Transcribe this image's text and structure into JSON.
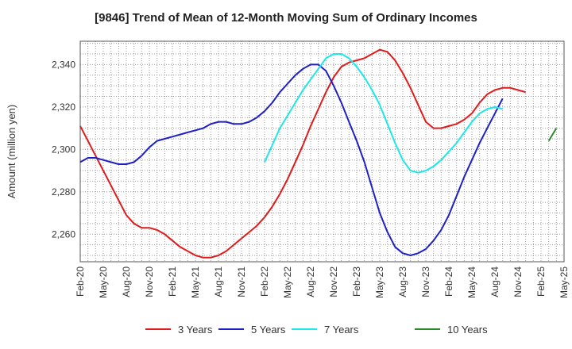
{
  "chart_data": {
    "type": "line",
    "title": "[9846]  Trend of Mean of 12-Month Moving Sum of Ordinary Incomes",
    "xlabel": "",
    "ylabel": "Amount (million yen)",
    "ylim": [
      2247,
      2351
    ],
    "yticks": [
      2260,
      2280,
      2300,
      2320,
      2340
    ],
    "ytick_labels": [
      "2,260",
      "2,280",
      "2,300",
      "2,320",
      "2,340"
    ],
    "x_start_month": "2020-02",
    "x_total_months": 63,
    "xtick_labels": [
      "Feb-20",
      "May-20",
      "Aug-20",
      "Nov-20",
      "Feb-21",
      "May-21",
      "Aug-21",
      "Nov-21",
      "Feb-22",
      "May-22",
      "Aug-22",
      "Nov-22",
      "Feb-23",
      "May-23",
      "Aug-23",
      "Nov-23",
      "Feb-24",
      "May-24",
      "Aug-24",
      "Nov-24",
      "Feb-25",
      "May-25"
    ],
    "grid": true,
    "legend_position": "bottom",
    "series": [
      {
        "name": "3 Years",
        "color": "#e01b1b",
        "start_index": 0,
        "values": [
          2311,
          2304,
          2297,
          2290,
          2283,
          2276,
          2269,
          2265,
          2263,
          2263,
          2262,
          2260,
          2257,
          2254,
          2252,
          2250,
          2249,
          2249,
          2250,
          2252,
          2255,
          2258,
          2261,
          2264,
          2268,
          2273,
          2279,
          2286,
          2294,
          2302,
          2311,
          2319,
          2327,
          2334,
          2339,
          2341,
          2342,
          2343,
          2345,
          2347,
          2346,
          2342,
          2336,
          2329,
          2321,
          2313,
          2310,
          2310,
          2311,
          2312,
          2314,
          2317,
          2322,
          2326,
          2328,
          2329,
          2329,
          2328,
          2327
        ]
      },
      {
        "name": "5 Years",
        "color": "#1f1fc7",
        "start_index": 0,
        "values": [
          2294,
          2296,
          2296,
          2295,
          2294,
          2293,
          2293,
          2294,
          2297,
          2301,
          2304,
          2305,
          2306,
          2307,
          2308,
          2309,
          2310,
          2312,
          2313,
          2313,
          2312,
          2312,
          2313,
          2315,
          2318,
          2322,
          2327,
          2331,
          2335,
          2338,
          2340,
          2340,
          2337,
          2330,
          2322,
          2313,
          2304,
          2294,
          2282,
          2270,
          2261,
          2254,
          2251,
          2250,
          2251,
          2253,
          2257,
          2262,
          2269,
          2278,
          2287,
          2295,
          2303,
          2310,
          2317,
          2324
        ]
      },
      {
        "name": "7 Years",
        "color": "#1de8e8",
        "start_index": 24,
        "values": [
          2294,
          2302,
          2310,
          2316,
          2322,
          2328,
          2333,
          2338,
          2343,
          2345,
          2345,
          2343,
          2339,
          2334,
          2328,
          2321,
          2312,
          2303,
          2295,
          2290,
          2289,
          2290,
          2292,
          2295,
          2299,
          2303,
          2308,
          2313,
          2317,
          2319,
          2320,
          2319
        ]
      },
      {
        "name": "10 Years",
        "color": "#2a8a2a",
        "start_index": 61,
        "values": [
          2304,
          2310
        ]
      }
    ]
  }
}
